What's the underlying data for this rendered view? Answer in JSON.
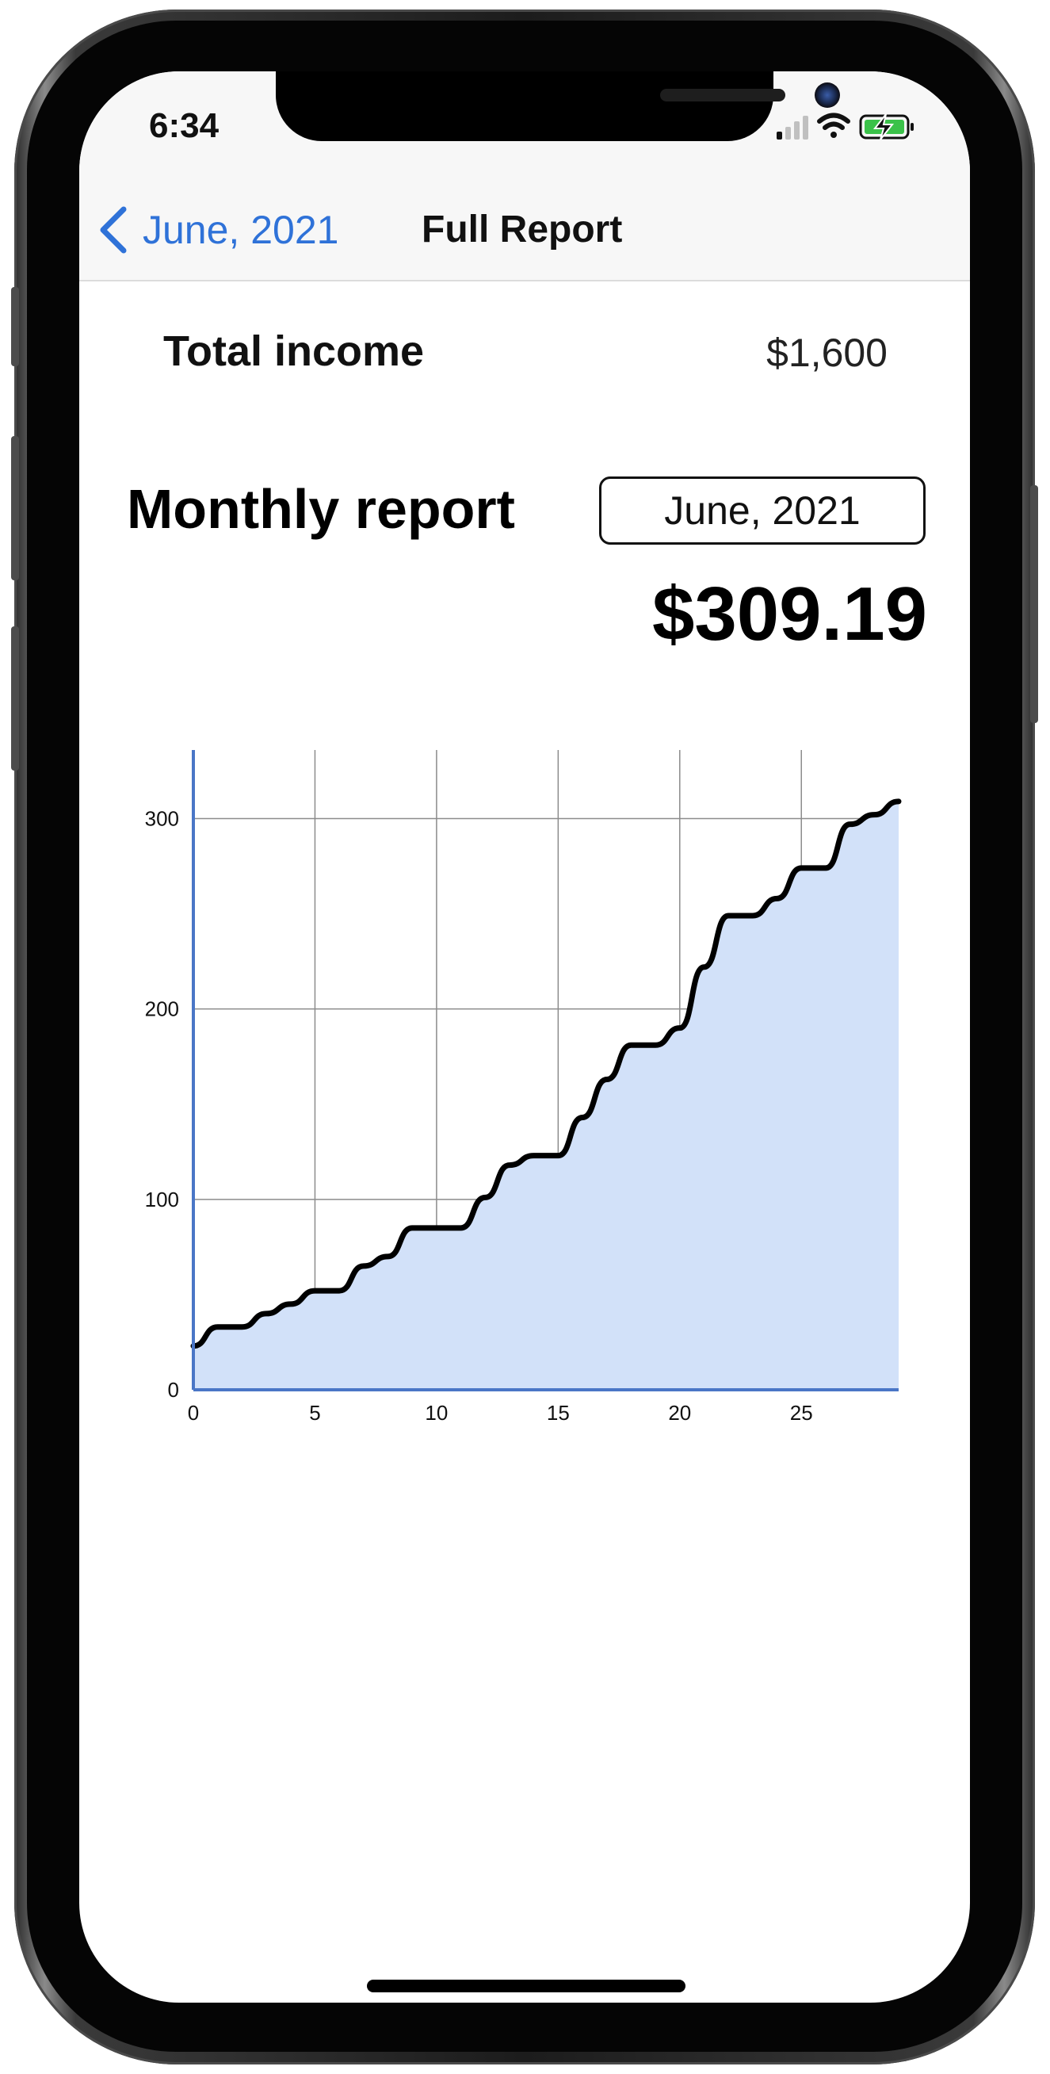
{
  "status_bar": {
    "time": "6:34"
  },
  "nav": {
    "back_label": "June, 2021",
    "title": "Full Report"
  },
  "income": {
    "label": "Total income",
    "value": "$1,600"
  },
  "report": {
    "title": "Monthly report",
    "month_picker": "June, 2021",
    "total": "$309.19"
  },
  "colors": {
    "accent": "#2f72d8",
    "chart_fill": "#d2e1f9",
    "chart_line": "#000000",
    "axis": "#4a76c6"
  },
  "chart_data": {
    "type": "area",
    "title": "",
    "xlabel": "",
    "ylabel": "",
    "xlim": [
      0,
      29
    ],
    "ylim": [
      0,
      336
    ],
    "x_ticks": [
      0,
      5,
      10,
      15,
      20,
      25
    ],
    "y_ticks": [
      0,
      100,
      200,
      300
    ],
    "grid": true,
    "series": [
      {
        "x": [
          0,
          1,
          2,
          3,
          4,
          5,
          6,
          7,
          8,
          9,
          10,
          11,
          12,
          13,
          14,
          15,
          16,
          17,
          18,
          19,
          20,
          21,
          22,
          23,
          24,
          25,
          26,
          27,
          28,
          29
        ],
        "y": [
          23,
          33,
          33,
          40,
          45,
          52,
          52,
          65,
          70,
          85,
          85,
          85,
          101,
          118,
          123,
          123,
          143,
          163,
          181,
          181,
          190,
          222,
          249,
          249,
          258,
          274,
          274,
          297,
          302,
          309
        ]
      }
    ]
  }
}
